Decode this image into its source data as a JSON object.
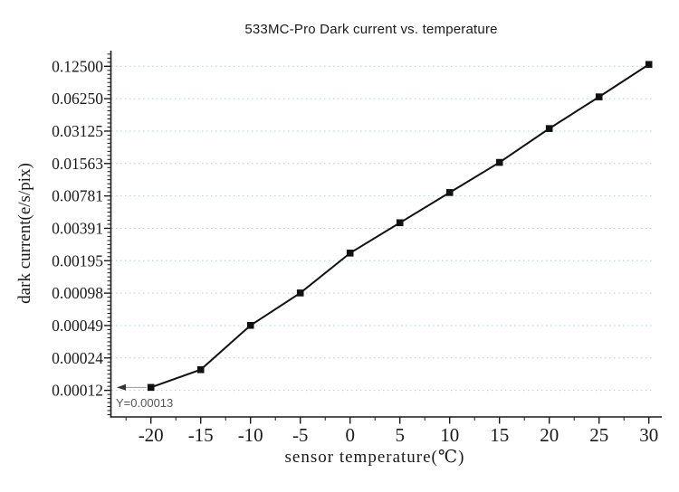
{
  "chart": {
    "title": "533MC-Pro Dark current vs. temperature",
    "xlabel": "sensor temperature(℃)",
    "ylabel": "dark current(e/s/pix)",
    "annotation_text": "Y=0.00013"
  },
  "chart_data": {
    "type": "line",
    "title": "533MC-Pro Dark current vs. temperature",
    "xlabel": "sensor temperature(℃)",
    "ylabel": "dark current(e/s/pix)",
    "series": [
      {
        "name": "dark current",
        "x": [
          -20,
          -15,
          -10,
          -5,
          0,
          5,
          10,
          15,
          20,
          25,
          30
        ],
        "y": [
          0.00013,
          0.00019,
          0.00049,
          0.00098,
          0.0023,
          0.0044,
          0.0084,
          0.016,
          0.033,
          0.065,
          0.13
        ]
      }
    ],
    "y_scale": "log2",
    "y_ticks": [
      0.125,
      0.0625,
      0.03125,
      0.015625,
      0.0078125,
      0.00390625,
      0.001953125,
      0.0009765625,
      0.00048828125,
      0.000244140625,
      0.0001220703125
    ],
    "y_tick_labels": [
      "0.12500",
      "0.06250",
      "0.03125",
      "0.01563",
      "0.00781",
      "0.00391",
      "0.00195",
      "0.00098",
      "0.00049",
      "0.00024",
      "0.00012"
    ],
    "x_ticks": [
      -20,
      -15,
      -10,
      -5,
      0,
      5,
      10,
      15,
      20,
      25,
      30
    ],
    "x_tick_labels": [
      "-20",
      "-15",
      "-10",
      "-5",
      "0",
      "5",
      "10",
      "15",
      "20",
      "25",
      "30"
    ],
    "x_minor_ticks": [
      -22.5,
      -17.5,
      -12.5,
      -7.5,
      -2.5,
      2.5,
      7.5,
      12.5,
      17.5,
      22.5,
      27.5
    ],
    "xlim": [
      -24,
      31.6
    ],
    "grid": "horizontal-dotted",
    "legend": "none",
    "marker": "filled-square",
    "annotation": {
      "text": "Y=0.00013",
      "points_to_x": -20,
      "points_to_y": 0.00013
    },
    "colors": {
      "line": "#111111",
      "marker": "#111111",
      "grid": "#b4cde8",
      "axis": "#1a1a1a",
      "tick_label": "#1a1a1a",
      "annotation_text": "#555555",
      "arrow_line": "#999999",
      "arrow_head": "#333333",
      "background": "#ffffff"
    }
  }
}
